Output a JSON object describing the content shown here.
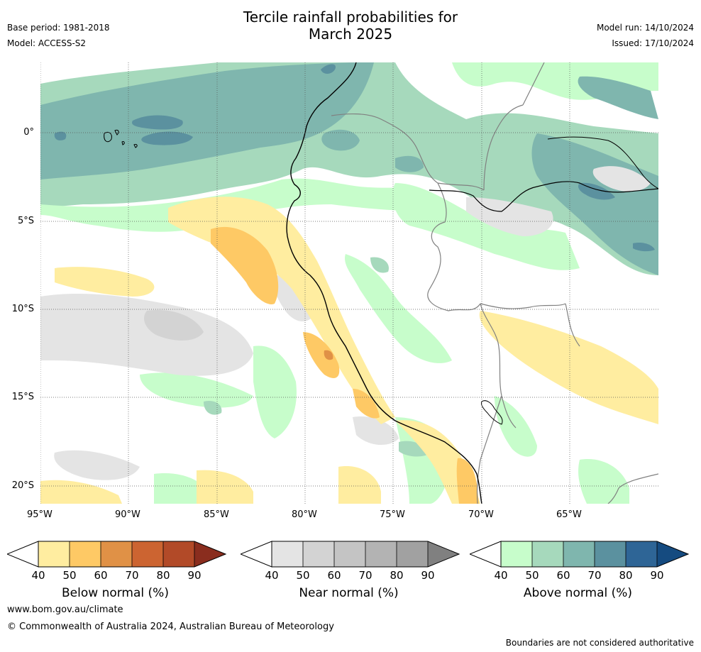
{
  "header": {
    "title_line1": "Tercile rainfall probabilities for",
    "title_line2": "March 2025",
    "base_period": "Base period: 1981-2018",
    "model": "Model: ACCESS-S2",
    "model_run": "Model run: 14/10/2024",
    "issued": "Issued: 17/10/2024"
  },
  "map": {
    "latitude_labels": [
      "0°",
      "5°S",
      "10°S",
      "15°S",
      "20°S"
    ],
    "longitude_labels": [
      "95°W",
      "90°W",
      "85°W",
      "80°W",
      "75°W",
      "70°W",
      "65°W"
    ],
    "colors": {
      "land_border": "#808080",
      "coastline": "#000000",
      "gridline": "#555555"
    }
  },
  "colorbars": [
    {
      "title": "Below normal (%)",
      "ticks": [
        "40",
        "50",
        "60",
        "70",
        "80",
        "90"
      ],
      "colors": [
        "#ffeda0",
        "#fec965",
        "#e09146",
        "#cc6431",
        "#b24a28",
        "#8a2d1e"
      ]
    },
    {
      "title": "Near normal (%)",
      "ticks": [
        "40",
        "50",
        "60",
        "70",
        "80",
        "90"
      ],
      "colors": [
        "#e4e4e4",
        "#d3d3d3",
        "#c4c4c4",
        "#b3b3b3",
        "#a1a1a1",
        "#808080"
      ]
    },
    {
      "title": "Above normal (%)",
      "ticks": [
        "40",
        "50",
        "60",
        "70",
        "80",
        "90"
      ],
      "colors": [
        "#c7fdcb",
        "#a6d9bc",
        "#7fb6ae",
        "#5b919f",
        "#2e6596",
        "#154b80"
      ]
    }
  ],
  "footer": {
    "url": "www.bom.gov.au/climate",
    "copyright": "© Commonwealth of Australia 2024, Australian Bureau of Meteorology",
    "note": "Boundaries are not considered authoritative"
  }
}
